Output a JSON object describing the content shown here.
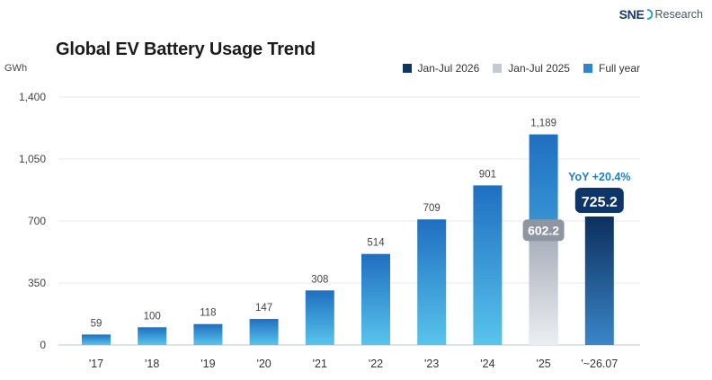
{
  "brand": {
    "name_bold": "SNE",
    "name_rest": "Research"
  },
  "chart_data": {
    "type": "bar",
    "title": "Global EV Battery Usage Trend",
    "ylabel": "GWh",
    "ylim": [
      0,
      1400
    ],
    "yticks": [
      "0",
      "350",
      "700",
      "1,050",
      "1,400"
    ],
    "ytick_values": [
      0,
      350,
      700,
      1050,
      1400
    ],
    "categories": [
      "'17",
      "'18",
      "'19",
      "'20",
      "'21",
      "'22",
      "'23",
      "'24",
      "'25",
      "'~26.07"
    ],
    "legend": [
      {
        "name": "Jan-Jul 2026",
        "color": "#0f3566"
      },
      {
        "name": "Jan-Jul 2025",
        "color": "#c3c9d2"
      },
      {
        "name": "Full year",
        "color": "#2d84cf"
      }
    ],
    "legend_position": "top-right",
    "series": [
      {
        "name": "Full year",
        "values": [
          59,
          100,
          118,
          147,
          308,
          514,
          709,
          901,
          1189,
          null
        ],
        "labels": [
          "59",
          "100",
          "118",
          "147",
          "308",
          "514",
          "709",
          "901",
          "1,189",
          ""
        ]
      },
      {
        "name": "Jan-Jul 2025",
        "values": [
          null,
          null,
          null,
          null,
          null,
          null,
          null,
          null,
          602.2,
          null
        ],
        "labels": [
          "",
          "",
          "",
          "",
          "",
          "",
          "",
          "",
          "602.2",
          ""
        ]
      },
      {
        "name": "Jan-Jul 2026",
        "values": [
          null,
          null,
          null,
          null,
          null,
          null,
          null,
          null,
          null,
          725.2
        ],
        "labels": [
          "",
          "",
          "",
          "",
          "",
          "",
          "",
          "",
          "",
          "725.2"
        ]
      }
    ],
    "annotation": {
      "text": "YoY  +20.4%",
      "color": "#1f7fc4"
    },
    "grid": true
  }
}
